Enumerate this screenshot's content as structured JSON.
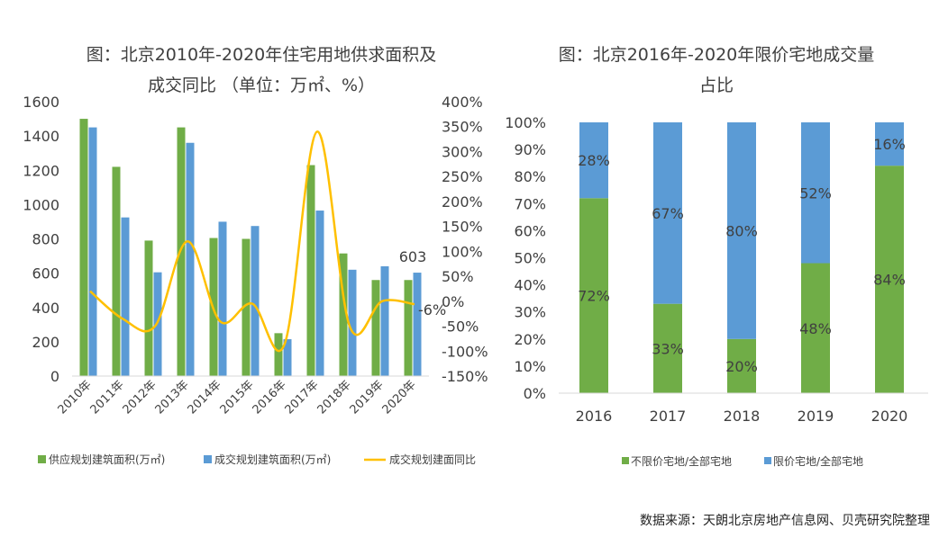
{
  "chart_data": [
    {
      "type": "bar+line",
      "title_line1": "图：北京2010年-2020年住宅用地供求面积及",
      "title_line2": "成交同比 （单位：万㎡、%）",
      "categories": [
        "2010年",
        "2011年",
        "2012年",
        "2013年",
        "2014年",
        "2015年",
        "2016年",
        "2017年",
        "2018年",
        "2019年",
        "2020年"
      ],
      "left_axis": {
        "min": 0,
        "max": 1600,
        "ticks": [
          "0",
          "200",
          "400",
          "600",
          "800",
          "1000",
          "1200",
          "1400",
          "1600"
        ]
      },
      "right_axis": {
        "min": -150,
        "max": 400,
        "ticks": [
          "-150%",
          "-100%",
          "-50%",
          "0%",
          "50%",
          "100%",
          "150%",
          "200%",
          "250%",
          "300%",
          "350%",
          "400%"
        ]
      },
      "series": [
        {
          "name": "供应规划建筑面积(万㎡)",
          "axis": "left",
          "kind": "bar",
          "color": "#70AD47",
          "values": [
            1500,
            1220,
            790,
            1450,
            805,
            800,
            250,
            1230,
            715,
            560,
            560
          ]
        },
        {
          "name": "成交规划建筑面积(万㎡)",
          "axis": "left",
          "kind": "bar",
          "color": "#5B9BD5",
          "values": [
            1450,
            925,
            605,
            1360,
            900,
            875,
            215,
            965,
            620,
            640,
            603
          ]
        },
        {
          "name": "成交规划建面同比",
          "axis": "right",
          "kind": "line",
          "color": "#FFC000",
          "values": [
            20,
            -35,
            -50,
            120,
            -40,
            -5,
            -85,
            340,
            -50,
            0,
            -6
          ]
        }
      ],
      "annotations": [
        {
          "text": "603",
          "category_index": 10,
          "series": 1
        },
        {
          "text": "-6%",
          "category_index": 10,
          "series": 2
        }
      ]
    },
    {
      "type": "stacked-bar-100",
      "title_line1": "图：北京2016年-2020年限价宅地成交量",
      "title_line2": "占比",
      "categories": [
        "2016",
        "2017",
        "2018",
        "2019",
        "2020"
      ],
      "axis": {
        "min": 0,
        "max": 100,
        "ticks": [
          "0%",
          "10%",
          "20%",
          "30%",
          "40%",
          "50%",
          "60%",
          "70%",
          "80%",
          "90%",
          "100%"
        ]
      },
      "series": [
        {
          "name": "不限价宅地/全部宅地",
          "color": "#70AD47",
          "values": [
            72,
            33,
            20,
            48,
            84
          ],
          "labels": [
            "72%",
            "33%",
            "20%",
            "48%",
            "84%"
          ]
        },
        {
          "name": "限价宅地/全部宅地",
          "color": "#5B9BD5",
          "values": [
            28,
            67,
            80,
            52,
            16
          ],
          "labels": [
            "28%",
            "67%",
            "80%",
            "52%",
            "16%"
          ]
        }
      ]
    }
  ],
  "source_text": "数据来源：天朗北京房地产信息网、贝壳研究院整理"
}
